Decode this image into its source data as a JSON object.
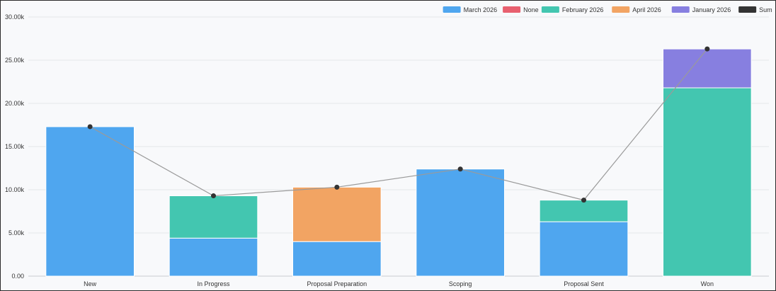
{
  "chart_data": {
    "type": "bar",
    "stacked": true,
    "categories": [
      "New",
      "In Progress",
      "Proposal Preparation",
      "Scoping",
      "Proposal Sent",
      "Won"
    ],
    "y_ticks": [
      "0.00",
      "5.00k",
      "10.00k",
      "15.00k",
      "20.00k",
      "25.00k",
      "30.00k"
    ],
    "ylim": [
      0,
      30000
    ],
    "grid": true,
    "legend_position": "top-right",
    "series": [
      {
        "name": "March 2026",
        "color": "#4fa6ef",
        "values": [
          17300,
          4400,
          4000,
          12400,
          6300,
          0
        ]
      },
      {
        "name": "None",
        "color": "#e8606f",
        "values": [
          0,
          0,
          0,
          0,
          0,
          0
        ]
      },
      {
        "name": "February 2026",
        "color": "#43c6b0",
        "values": [
          0,
          4900,
          0,
          0,
          2500,
          21800
        ]
      },
      {
        "name": "April 2026",
        "color": "#f2a463",
        "values": [
          0,
          0,
          6300,
          0,
          0,
          0
        ]
      },
      {
        "name": "January 2026",
        "color": "#877fe0",
        "values": [
          0,
          0,
          0,
          0,
          0,
          4500
        ]
      }
    ],
    "line_series": {
      "name": "Sum",
      "color": "#333333",
      "values": [
        17300,
        9300,
        10300,
        12400,
        8800,
        26300
      ]
    }
  }
}
